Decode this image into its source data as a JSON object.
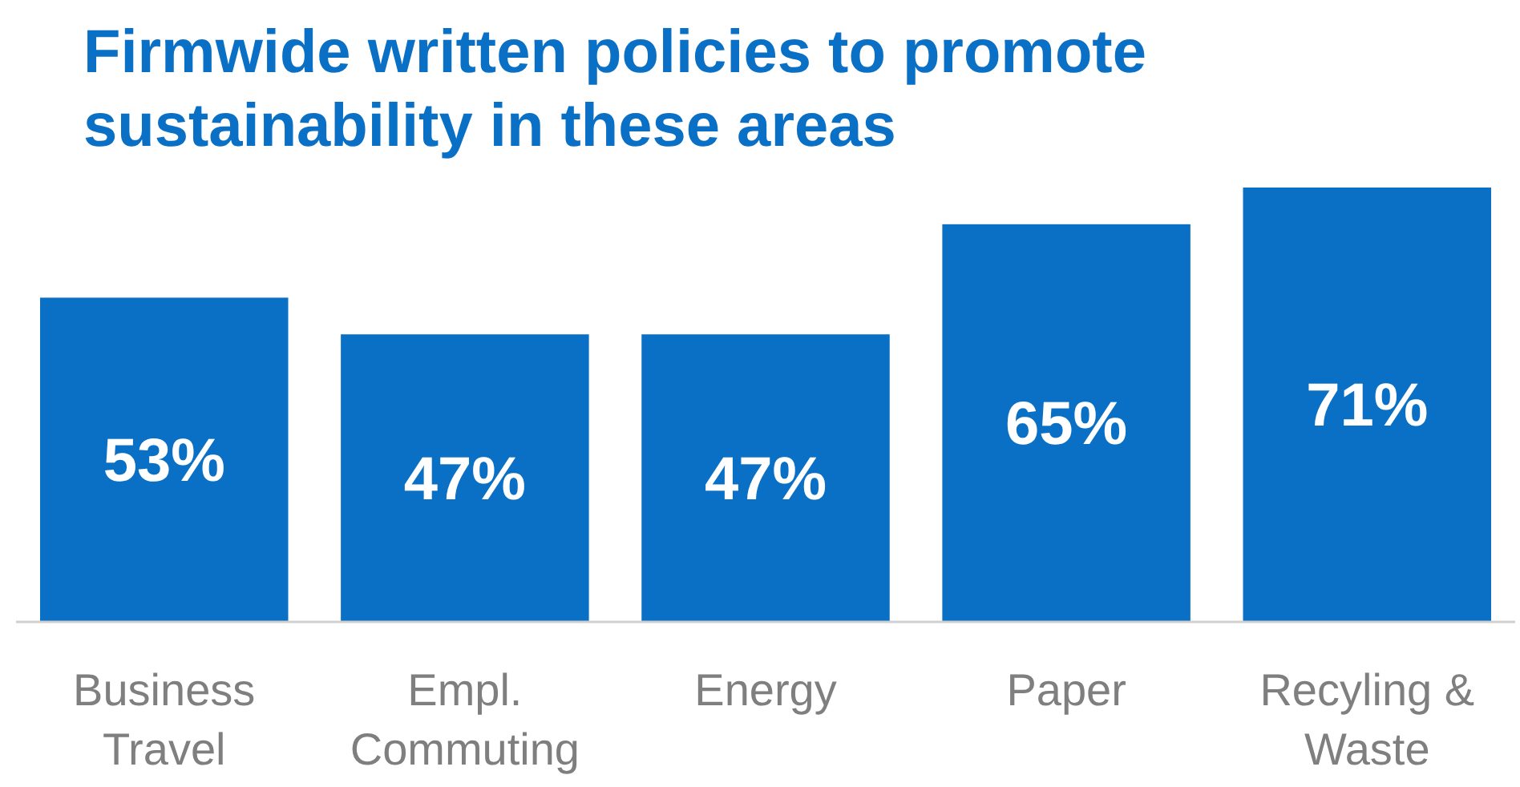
{
  "chart_data": {
    "type": "bar",
    "title": "Firmwide written policies to promote sustainability in these areas",
    "categories": [
      "Business Travel",
      "Empl. Commuting",
      "Energy",
      "Paper",
      "Recyling & Waste"
    ],
    "values": [
      53,
      47,
      47,
      65,
      71
    ],
    "value_labels": [
      "53%",
      "47%",
      "47%",
      "65%",
      "71%"
    ],
    "color": "#0a70c6"
  }
}
